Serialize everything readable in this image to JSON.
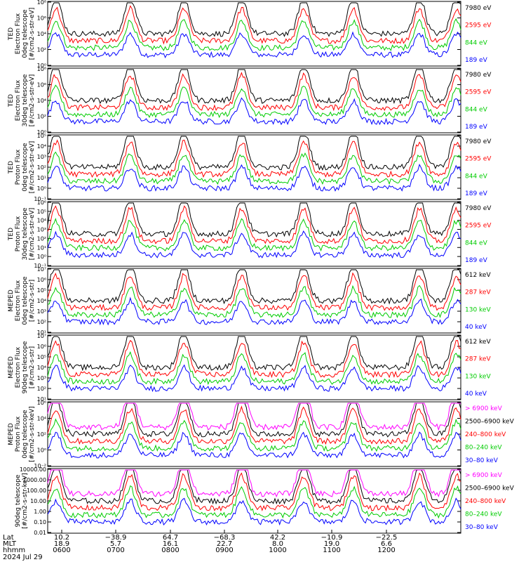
{
  "chart_data": [
    {
      "type": "line",
      "ylabel": "TED\nElectron Flux\n0deg telescope\n[#/cm2-s-str-eV]",
      "yticks": [
        {
          "label": "10⁸"
        },
        {
          "label": "10⁶"
        },
        {
          "label": "10⁴"
        },
        {
          "label": "10²"
        },
        {
          "label": "10⁰"
        }
      ],
      "legend": [
        {
          "name": "7980 eV",
          "color": "#000000"
        },
        {
          "name": "2595 eV",
          "color": "#ff0000"
        },
        {
          "name": "844 eV",
          "color": "#00cc00"
        },
        {
          "name": "189 eV",
          "color": "#0000ff"
        }
      ]
    },
    {
      "type": "line",
      "ylabel": "TED\nElectron Flux\n30deg telescope\n[#/cm2-s-str-eV]",
      "yticks": [
        {
          "label": "10⁸"
        },
        {
          "label": "10⁶"
        },
        {
          "label": "10⁴"
        },
        {
          "label": "10²"
        },
        {
          "label": "10⁰"
        }
      ],
      "legend": [
        {
          "name": "7980 eV",
          "color": "#000000"
        },
        {
          "name": "2595 eV",
          "color": "#ff0000"
        },
        {
          "name": "844 eV",
          "color": "#00cc00"
        },
        {
          "name": "189 eV",
          "color": "#0000ff"
        }
      ]
    },
    {
      "type": "line",
      "ylabel": "TED\nProton Flux\n0deg telescope\n[#/cm2-s-str-eV]",
      "yticks": [
        {
          "label": "10⁵"
        },
        {
          "label": "10⁴"
        },
        {
          "label": "10³"
        },
        {
          "label": "10²"
        },
        {
          "label": "10¹"
        },
        {
          "label": "10⁰"
        },
        {
          "label": "10⁻¹"
        }
      ],
      "legend": [
        {
          "name": "7980 eV",
          "color": "#000000"
        },
        {
          "name": "2595 eV",
          "color": "#ff0000"
        },
        {
          "name": "844 eV",
          "color": "#00cc00"
        },
        {
          "name": "189 eV",
          "color": "#0000ff"
        }
      ]
    },
    {
      "type": "line",
      "ylabel": "TED\nProton Flux\n30deg telescope\n[#/cm2-s-str-eV]",
      "yticks": [
        {
          "label": "10⁶"
        },
        {
          "label": "10⁵"
        },
        {
          "label": "10⁴"
        },
        {
          "label": "10³"
        },
        {
          "label": "10²"
        },
        {
          "label": "10¹"
        },
        {
          "label": "10⁰"
        },
        {
          "label": "10⁻¹"
        }
      ],
      "legend": [
        {
          "name": "7980 eV",
          "color": "#000000"
        },
        {
          "name": "2595 eV",
          "color": "#ff0000"
        },
        {
          "name": "844 eV",
          "color": "#00cc00"
        },
        {
          "name": "189 eV",
          "color": "#0000ff"
        }
      ]
    },
    {
      "type": "line",
      "ylabel": "MEPED\nElectron Flux\n0deg telescope\n[#/cm2-s-str]",
      "yticks": [
        {
          "label": "10⁷"
        },
        {
          "label": "10⁶"
        },
        {
          "label": "10⁵"
        },
        {
          "label": "10⁴"
        },
        {
          "label": "10³"
        },
        {
          "label": "10²"
        },
        {
          "label": "10¹"
        }
      ],
      "legend": [
        {
          "name": "612 keV",
          "color": "#000000"
        },
        {
          "name": "287 keV",
          "color": "#ff0000"
        },
        {
          "name": "130 keV",
          "color": "#00cc00"
        },
        {
          "name": "40 keV",
          "color": "#0000ff"
        }
      ]
    },
    {
      "type": "line",
      "ylabel": "MEPED\nElectron Flux\n90deg telescope\n[#/cm2-s-str]",
      "yticks": [
        {
          "label": "10⁷"
        },
        {
          "label": "10⁶"
        },
        {
          "label": "10⁵"
        },
        {
          "label": "10⁴"
        },
        {
          "label": "10³"
        },
        {
          "label": "10²"
        },
        {
          "label": "10¹"
        }
      ],
      "legend": [
        {
          "name": "612 keV",
          "color": "#000000"
        },
        {
          "name": "287 keV",
          "color": "#ff0000"
        },
        {
          "name": "130 keV",
          "color": "#00cc00"
        },
        {
          "name": "40 keV",
          "color": "#0000ff"
        }
      ]
    },
    {
      "type": "line",
      "ylabel": "MEPED\nProton Flux\n0deg telescope\n[#/cm2-s-str-keV]",
      "yticks": [
        {
          "label": "10⁶"
        },
        {
          "label": "10⁴"
        },
        {
          "label": "10²"
        },
        {
          "label": "10⁰"
        },
        {
          "label": "10⁻²"
        }
      ],
      "legend": [
        {
          "name": "> 6900 keV",
          "color": "#ff00ff"
        },
        {
          "name": "2500–6900 keV",
          "color": "#000000"
        },
        {
          "name": "240–800 keV",
          "color": "#ff0000"
        },
        {
          "name": "80–240 keV",
          "color": "#00cc00"
        },
        {
          "name": "30–80 keV",
          "color": "#0000ff"
        }
      ]
    },
    {
      "type": "line",
      "ylabel": "90deg telescope\n[#/cm2-s-str-keV]",
      "yticks": [
        {
          "label": "10000.00"
        },
        {
          "label": "1000.00"
        },
        {
          "label": "100.00"
        },
        {
          "label": "10.00"
        },
        {
          "label": "1.00"
        },
        {
          "label": "0.10"
        },
        {
          "label": "0.01"
        }
      ],
      "legend": [
        {
          "name": "> 6900 keV",
          "color": "#ff00ff"
        },
        {
          "name": "2500–6900 keV",
          "color": "#000000"
        },
        {
          "name": "240–800 keV",
          "color": "#ff0000"
        },
        {
          "name": "80–240 keV",
          "color": "#00cc00"
        },
        {
          "name": "30–80 keV",
          "color": "#0000ff"
        }
      ]
    }
  ],
  "xaxis": {
    "row_labels": [
      "Lat",
      "MLT",
      "hhmm"
    ],
    "columns": [
      {
        "lat": "10.2",
        "mlt": "18.9",
        "hhmm": "0600"
      },
      {
        "lat": "−38.9",
        "mlt": "5.7",
        "hhmm": "0700"
      },
      {
        "lat": "64.7",
        "mlt": "16.1",
        "hhmm": "0800"
      },
      {
        "lat": "−68.3",
        "mlt": "22.7",
        "hhmm": "0900"
      },
      {
        "lat": "42.2",
        "mlt": "8.0",
        "hhmm": "1000"
      },
      {
        "lat": "−10.9",
        "mlt": "19.0",
        "hhmm": "1100"
      },
      {
        "lat": "−22.5",
        "mlt": "6.6",
        "hhmm": "1200"
      }
    ],
    "date": "2024 Jul 29"
  }
}
